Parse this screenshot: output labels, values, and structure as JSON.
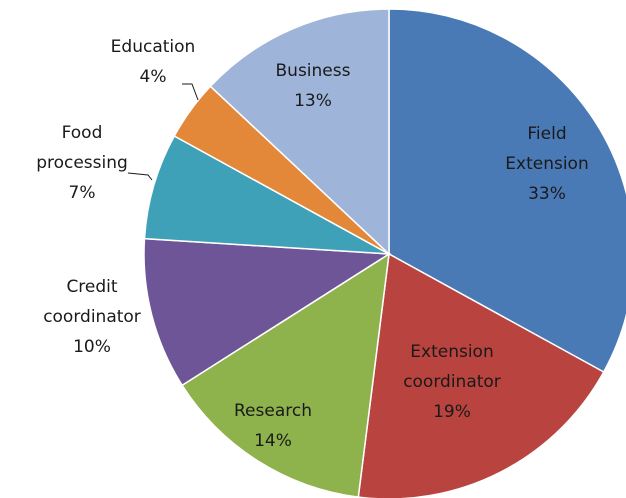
{
  "chart_data": {
    "type": "pie",
    "title": "",
    "slices": [
      {
        "label": [
          "Field",
          "Extension"
        ],
        "percent_label": "33%",
        "value": 33,
        "color": "#4a7ab5"
      },
      {
        "label": [
          "Extension",
          "coordinator"
        ],
        "percent_label": "19%",
        "value": 19,
        "color": "#b9433f"
      },
      {
        "label": [
          "Research"
        ],
        "percent_label": "14%",
        "value": 14,
        "color": "#8eb24c"
      },
      {
        "label": [
          "Credit",
          "coordinator"
        ],
        "percent_label": "10%",
        "value": 10,
        "color": "#6d5597"
      },
      {
        "label": [
          "Food",
          "processing"
        ],
        "percent_label": "7%",
        "value": 7,
        "color": "#3fa1b8"
      },
      {
        "label": [
          "Education"
        ],
        "percent_label": "4%",
        "value": 4,
        "color": "#e38838"
      },
      {
        "label": [
          "Business"
        ],
        "percent_label": "13%",
        "value": 13,
        "color": "#9fb4d9"
      }
    ]
  }
}
